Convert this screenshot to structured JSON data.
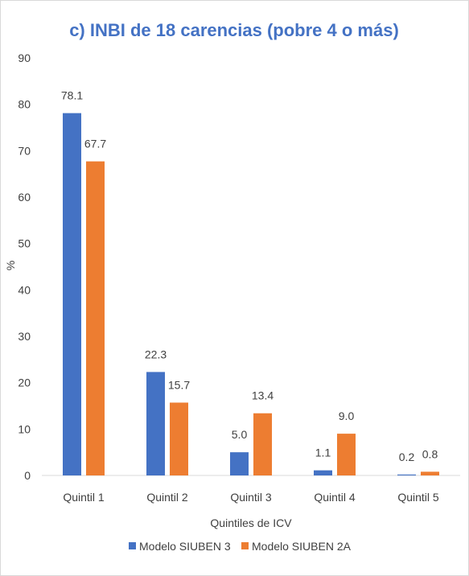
{
  "chart_data": {
    "type": "bar",
    "title": "c) INBI de 18 carencias (pobre 4 o más)",
    "xlabel": "Quintiles de ICV",
    "ylabel": "%",
    "ylim": [
      0,
      90
    ],
    "yticks": [
      "0",
      "10",
      "20",
      "30",
      "40",
      "50",
      "60",
      "70",
      "80",
      "90"
    ],
    "categories": [
      "Quintil 1",
      "Quintil 2",
      "Quintil 3",
      "Quintil 4",
      "Quintil 5"
    ],
    "series": [
      {
        "name": "Modelo SIUBEN 3",
        "color": "#4472c4",
        "values": [
          78.1,
          22.3,
          5.0,
          1.1,
          0.2
        ],
        "labels": [
          "78.1",
          "22.3",
          "5.0",
          "1.1",
          "0.2"
        ]
      },
      {
        "name": "Modelo SIUBEN 2A",
        "color": "#ed7d31",
        "values": [
          67.7,
          15.7,
          13.4,
          9.0,
          0.8
        ],
        "labels": [
          "67.7",
          "15.7",
          "13.4",
          "9.0",
          "0.8"
        ]
      }
    ],
    "grid": false,
    "legend": "bottom"
  }
}
